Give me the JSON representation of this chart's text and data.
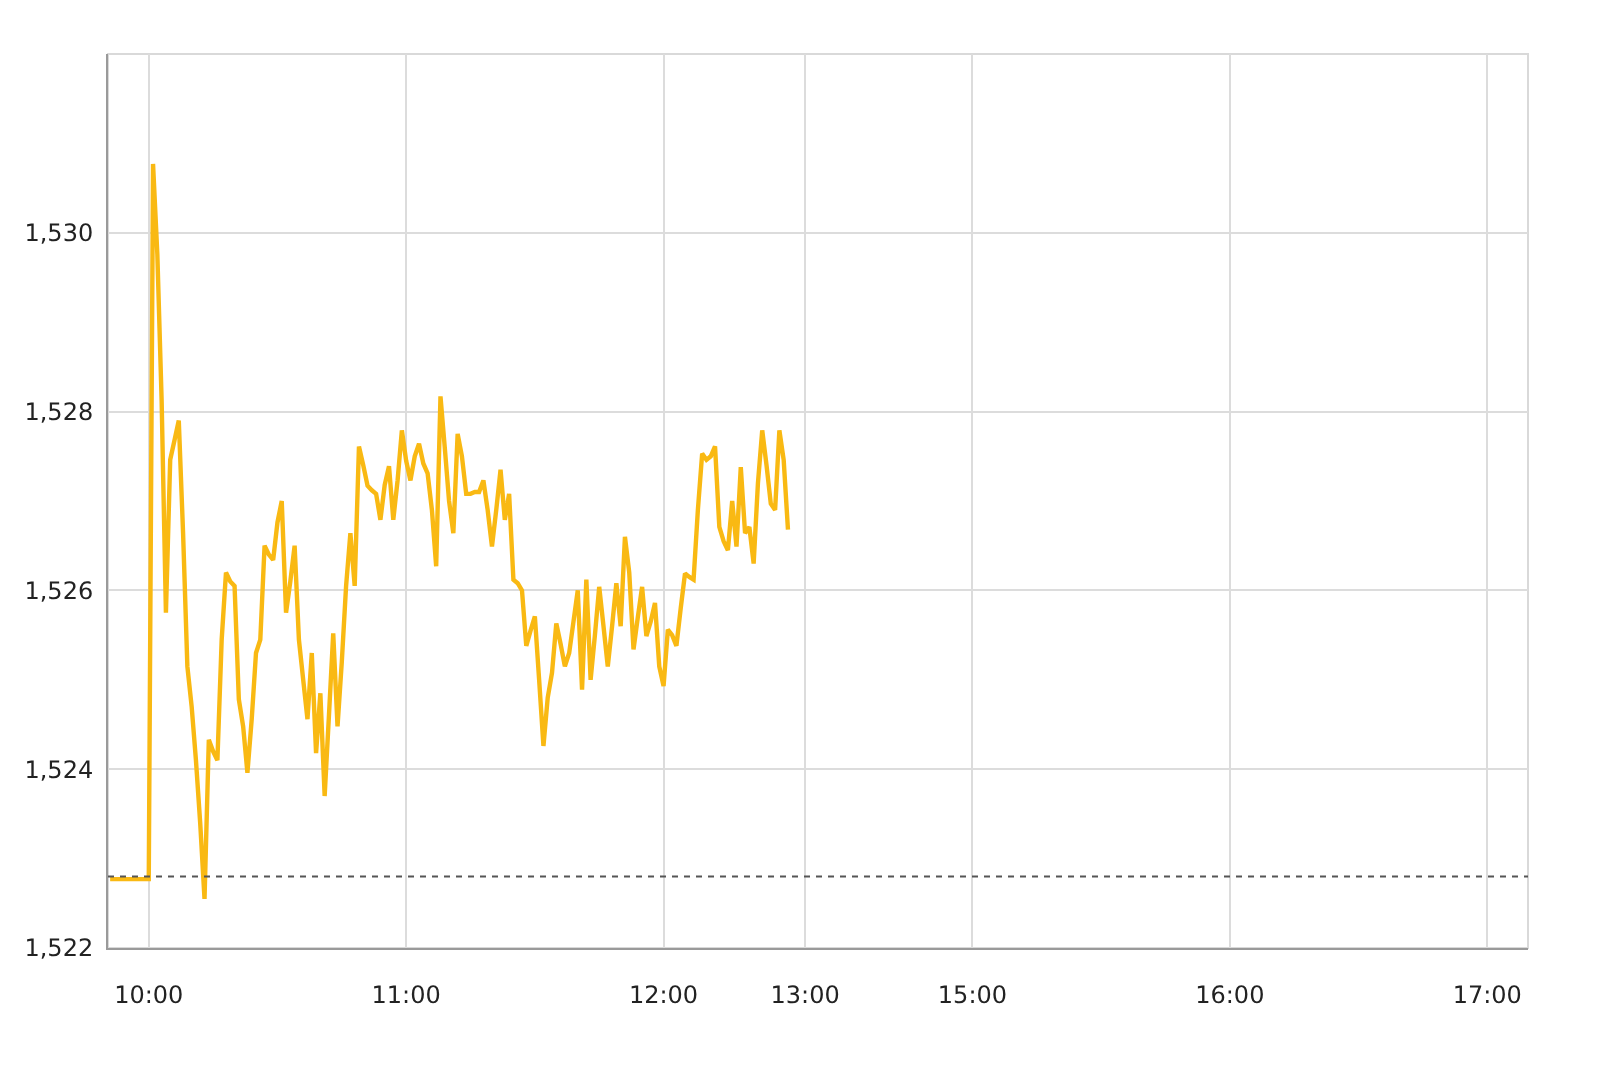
{
  "chart_data": {
    "type": "line",
    "categories": [
      null,
      null,
      null,
      null,
      null,
      null,
      null,
      null,
      null,
      "10:00",
      null,
      null,
      null,
      null,
      null,
      null,
      null,
      null,
      null,
      null,
      null,
      null,
      null,
      null,
      null,
      null,
      null,
      null,
      null,
      null,
      null,
      null,
      null,
      null,
      null,
      null,
      null,
      null,
      null,
      null,
      null,
      null,
      null,
      null,
      null,
      null,
      null,
      null,
      null,
      null,
      null,
      null,
      null,
      null,
      null,
      null,
      null,
      null,
      null,
      null,
      null,
      null,
      null,
      null,
      null,
      null,
      null,
      null,
      null,
      "11:00",
      null,
      null,
      null,
      null,
      null,
      null,
      null,
      null,
      null,
      null,
      null,
      null,
      null,
      null,
      null,
      null,
      null,
      null,
      null,
      null,
      null,
      null,
      null,
      null,
      null,
      null,
      null,
      null,
      null,
      null,
      null,
      null,
      null,
      null,
      null,
      null,
      null,
      null,
      null,
      null,
      null,
      null,
      null,
      null,
      null,
      null,
      null,
      null,
      null,
      null,
      null,
      null,
      null,
      null,
      null,
      null,
      null,
      null,
      null,
      "12:00",
      null,
      null,
      null,
      null,
      null,
      null,
      null,
      null,
      null,
      null,
      null,
      null,
      null,
      null,
      null,
      null,
      null,
      null,
      null,
      null,
      null,
      null,
      null,
      null,
      null,
      null,
      null,
      null,
      null,
      null,
      null,
      null,
      "13:00",
      null,
      null,
      null,
      null,
      null,
      null,
      null,
      null,
      null,
      null,
      null,
      null,
      null,
      null,
      null,
      null,
      null,
      null,
      null,
      null,
      null,
      null,
      null,
      null,
      null,
      null,
      null,
      null,
      null,
      null,
      null,
      null,
      null,
      null,
      null,
      null,
      null,
      null,
      "15:00",
      null,
      null,
      null,
      null,
      null,
      null,
      null,
      null,
      null,
      null,
      null,
      null,
      null,
      null,
      null,
      null,
      null,
      null,
      null,
      null,
      null,
      null,
      null,
      null,
      null,
      null,
      null,
      null,
      null,
      null,
      null,
      null,
      null,
      null,
      null,
      null,
      null,
      null,
      null,
      null,
      null,
      null,
      null,
      null,
      null,
      null,
      null,
      null,
      null,
      null,
      null,
      null,
      null,
      null,
      null,
      null,
      null,
      null,
      null,
      "16:00",
      null,
      null,
      null,
      null,
      null,
      null,
      null,
      null,
      null,
      null,
      null,
      null,
      null,
      null,
      null,
      null,
      null,
      null,
      null,
      null,
      null,
      null,
      null,
      null,
      null,
      null,
      null,
      null,
      null,
      null,
      null,
      null,
      null,
      null,
      null,
      null,
      null,
      null,
      null,
      null,
      null,
      null,
      null,
      null,
      null,
      null,
      null,
      null,
      null,
      null,
      null,
      null,
      null,
      null,
      null,
      null,
      null,
      null,
      null,
      "17:00",
      null,
      null,
      null,
      null,
      null,
      null,
      null,
      null,
      null
    ],
    "values": [
      1522.77,
      1522.77,
      1522.77,
      1522.77,
      1522.77,
      1522.77,
      1522.77,
      1522.77,
      1522.77,
      1522.77,
      1530.77,
      1529.76,
      1528.13,
      1525.75,
      1527.46,
      1527.68,
      1527.9,
      1526.64,
      1525.15,
      1524.7,
      1524.1,
      1523.39,
      1522.55,
      1524.33,
      1524.2,
      1524.1,
      1525.45,
      1526.2,
      1526.1,
      1526.05,
      1524.78,
      1524.48,
      1523.96,
      1524.56,
      1525.3,
      1525.45,
      1526.5,
      1526.4,
      1526.34,
      1526.76,
      1527.0,
      1525.75,
      1526.1,
      1526.5,
      1525.45,
      1525.0,
      1524.56,
      1525.3,
      1524.18,
      1524.85,
      1523.7,
      1524.6,
      1525.52,
      1524.48,
      1525.2,
      1526.05,
      1526.64,
      1526.05,
      1527.61,
      1527.4,
      1527.17,
      1527.12,
      1527.08,
      1526.79,
      1527.18,
      1527.39,
      1526.79,
      1527.23,
      1527.79,
      1527.45,
      1527.23,
      1527.5,
      1527.64,
      1527.42,
      1527.31,
      1526.9,
      1526.27,
      1528.17,
      1527.6,
      1527.0,
      1526.64,
      1527.75,
      1527.5,
      1527.08,
      1527.08,
      1527.1,
      1527.1,
      1527.23,
      1526.9,
      1526.49,
      1526.9,
      1527.35,
      1526.79,
      1527.08,
      1526.12,
      1526.08,
      1526.0,
      1525.38,
      1525.55,
      1525.71,
      1525.0,
      1524.26,
      1524.8,
      1525.08,
      1525.63,
      1525.4,
      1525.15,
      1525.3,
      1525.65,
      1526.0,
      1524.89,
      1526.12,
      1525.0,
      1525.5,
      1526.04,
      1525.6,
      1525.15,
      1525.6,
      1526.08,
      1525.6,
      1526.6,
      1526.2,
      1525.34,
      1525.7,
      1526.04,
      1525.49,
      1525.65,
      1525.86,
      1525.15,
      1524.93,
      1525.56,
      1525.5,
      1525.38,
      1525.8,
      1526.19,
      1526.15,
      1526.12,
      1526.9,
      1527.53,
      1527.46,
      1527.5,
      1527.61,
      1526.71,
      1526.55,
      1526.45,
      1527.0,
      1526.49,
      1527.38,
      1526.64,
      1526.71,
      1526.3,
      1527.2,
      1527.79,
      1527.4,
      1526.97,
      1526.9,
      1527.79,
      1527.46,
      1526.68,
      null,
      null,
      null,
      null,
      null,
      null,
      null,
      null,
      null,
      null,
      null,
      null,
      null,
      null,
      null,
      null,
      null,
      null,
      null,
      null,
      null,
      null,
      null,
      null,
      null,
      null,
      null,
      null,
      null,
      null,
      null,
      null,
      null,
      null,
      null,
      null,
      null,
      null,
      null,
      null,
      null,
      null,
      null,
      null,
      null,
      null,
      null,
      null,
      null,
      null,
      null,
      null,
      null,
      null,
      null,
      null,
      null,
      null,
      null,
      null,
      null,
      null,
      null,
      null,
      null,
      null,
      null,
      null,
      null,
      null,
      null,
      null,
      null,
      null,
      null,
      null,
      null,
      null,
      null,
      null,
      null,
      null,
      null,
      null,
      null,
      null,
      null,
      null,
      null,
      null,
      null,
      null,
      null,
      null,
      null,
      null,
      null,
      null,
      null,
      null,
      null,
      null,
      null,
      null,
      null,
      null,
      null,
      null,
      null,
      null,
      null,
      null,
      null,
      null,
      null,
      null,
      null,
      null,
      null,
      null,
      null,
      null,
      null,
      null,
      null,
      null,
      null,
      null,
      null,
      null,
      null,
      null,
      null,
      null,
      null,
      null,
      null,
      null,
      null,
      null,
      null,
      null,
      null,
      null,
      null,
      null,
      null,
      null,
      null,
      null,
      null,
      null,
      null,
      null,
      null,
      null,
      null,
      null,
      null,
      null,
      null,
      null,
      null,
      null,
      null,
      null,
      null,
      null,
      null,
      null,
      null,
      null
    ],
    "color": "#f9b913",
    "ylim": [
      1522,
      1532
    ],
    "yticks": [
      {
        "value": 1522,
        "label": "1,522"
      },
      {
        "value": 1524,
        "label": "1,524"
      },
      {
        "value": 1526,
        "label": "1,526"
      },
      {
        "value": 1528,
        "label": "1,528"
      },
      {
        "value": 1530,
        "label": "1,530"
      }
    ],
    "grid": true,
    "ref_lines": [
      {
        "axis": "y",
        "value": 1522.8,
        "color": "#555555",
        "line_style": "dotted"
      }
    ]
  }
}
